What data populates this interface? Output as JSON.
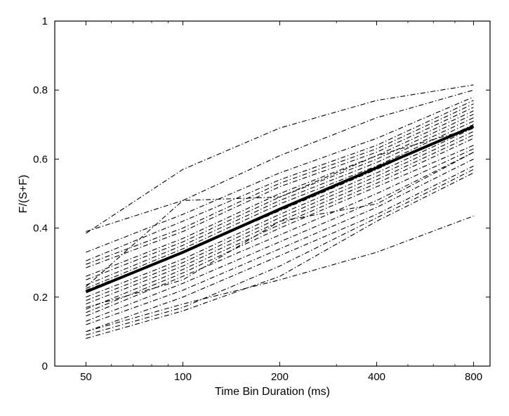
{
  "chart_data": {
    "type": "line",
    "title": "",
    "xlabel": "Time Bin Duration (ms)",
    "ylabel": "F/(S+F)",
    "x_scale": "log",
    "x": [
      50,
      100,
      200,
      400,
      800
    ],
    "x_tick_labels": [
      "50",
      "100",
      "200",
      "400",
      "800"
    ],
    "y_ticks": [
      0,
      0.2,
      0.4,
      0.6,
      0.8,
      1
    ],
    "y_tick_labels": [
      "0",
      "0.2",
      "0.4",
      "0.6",
      "0.8",
      "1"
    ],
    "xlim": [
      40,
      900
    ],
    "ylim": [
      0,
      1
    ],
    "grid": false,
    "legend": "none",
    "colors": {
      "lines": "#000000",
      "background": "#ffffff"
    },
    "mean_series": {
      "values": [
        0.215,
        0.33,
        0.455,
        0.575,
        0.695
      ]
    },
    "series": [
      {
        "values": [
          0.385,
          0.57,
          0.69,
          0.77,
          0.815
        ]
      },
      {
        "values": [
          0.39,
          0.48,
          0.61,
          0.72,
          0.8
        ]
      },
      {
        "values": [
          0.33,
          0.44,
          0.56,
          0.66,
          0.78
        ]
      },
      {
        "values": [
          0.305,
          0.42,
          0.54,
          0.64,
          0.77
        ]
      },
      {
        "values": [
          0.295,
          0.4,
          0.53,
          0.63,
          0.76
        ]
      },
      {
        "values": [
          0.285,
          0.39,
          0.52,
          0.62,
          0.75
        ]
      },
      {
        "values": [
          0.26,
          0.37,
          0.5,
          0.61,
          0.74
        ]
      },
      {
        "values": [
          0.25,
          0.36,
          0.49,
          0.6,
          0.73
        ]
      },
      {
        "values": [
          0.235,
          0.35,
          0.48,
          0.59,
          0.72
        ]
      },
      {
        "values": [
          0.225,
          0.34,
          0.47,
          0.58,
          0.71
        ]
      },
      {
        "values": [
          0.22,
          0.33,
          0.45,
          0.57,
          0.7
        ]
      },
      {
        "values": [
          0.2,
          0.31,
          0.44,
          0.56,
          0.69
        ]
      },
      {
        "values": [
          0.19,
          0.3,
          0.43,
          0.55,
          0.68
        ]
      },
      {
        "values": [
          0.18,
          0.29,
          0.42,
          0.54,
          0.67
        ]
      },
      {
        "values": [
          0.165,
          0.28,
          0.41,
          0.53,
          0.66
        ]
      },
      {
        "values": [
          0.155,
          0.27,
          0.4,
          0.52,
          0.64
        ]
      },
      {
        "values": [
          0.145,
          0.26,
          0.38,
          0.5,
          0.63
        ]
      },
      {
        "values": [
          0.13,
          0.24,
          0.36,
          0.48,
          0.62
        ]
      },
      {
        "values": [
          0.12,
          0.22,
          0.34,
          0.46,
          0.6
        ]
      },
      {
        "values": [
          0.1,
          0.2,
          0.32,
          0.44,
          0.58
        ]
      },
      {
        "values": [
          0.09,
          0.17,
          0.29,
          0.43,
          0.57
        ]
      },
      {
        "values": [
          0.08,
          0.16,
          0.26,
          0.42,
          0.56
        ]
      },
      {
        "values": [
          0.1,
          0.18,
          0.25,
          0.33,
          0.435
        ]
      },
      {
        "values": [
          0.23,
          0.48,
          0.49,
          0.61,
          0.69
        ]
      },
      {
        "values": [
          0.17,
          0.25,
          0.42,
          0.47,
          0.62
        ]
      }
    ]
  }
}
